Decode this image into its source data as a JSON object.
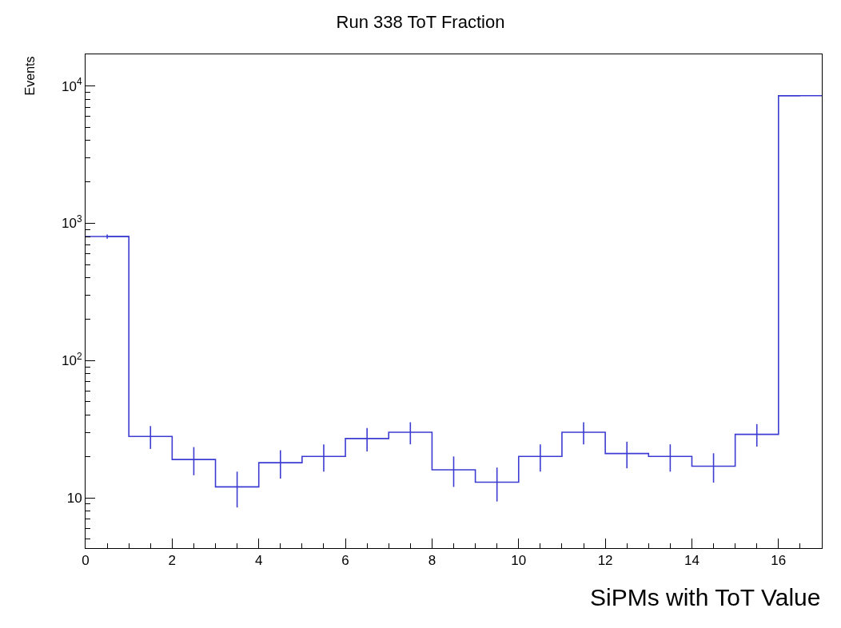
{
  "chart_data": {
    "type": "step",
    "title": "Run 338 ToT Fraction",
    "ylabel": "Events",
    "xlabel": "SiPMs with ToT Value",
    "x": [
      0.5,
      1.5,
      2.5,
      3.5,
      4.5,
      5.5,
      6.5,
      7.5,
      8.5,
      9.5,
      10.5,
      11.5,
      12.5,
      13.5,
      14.5,
      15.5,
      16.5
    ],
    "values": [
      800,
      28,
      19,
      12,
      18,
      20,
      27,
      30,
      16,
      13,
      20,
      30,
      21,
      20,
      17,
      29,
      8500
    ],
    "errors": [
      28,
      5.3,
      4.4,
      3.5,
      4.2,
      4.5,
      5.2,
      5.5,
      4,
      3.6,
      4.5,
      5.5,
      4.6,
      4.5,
      4.1,
      5.4,
      null
    ],
    "xerrors": [
      0.5,
      null,
      null,
      null,
      null,
      null,
      null,
      null,
      null,
      null,
      null,
      null,
      null,
      null,
      null,
      null,
      0.5
    ],
    "color": "#3c3cd2",
    "log": "y",
    "xlim": [
      0,
      17
    ],
    "xticks": [
      0,
      2,
      4,
      6,
      8,
      10,
      12,
      14,
      16
    ],
    "ylim": [
      4.3,
      17000
    ],
    "yticks": [
      10,
      {
        "value": 100,
        "label": "10$^{2}$"
      },
      {
        "value": 1000,
        "label": "10$^{3}$"
      },
      {
        "value": 10000,
        "label": "10$^{4}$"
      }
    ]
  }
}
